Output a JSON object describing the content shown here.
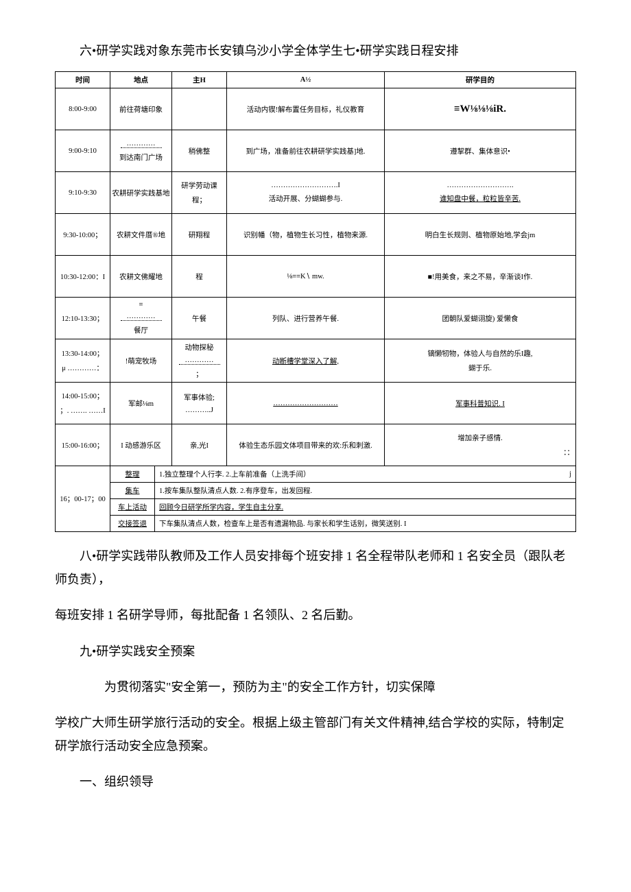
{
  "heading_six_seven": "六•研学实践对象东莞市长安镇乌沙小学全体学生七•研学实践日程安排",
  "table": {
    "headers": {
      "time": "时间",
      "location": "地点",
      "subject": "主H",
      "activity": "A½",
      "goal": "研学目的"
    },
    "rows": [
      {
        "time": "8:00-9:00",
        "location": "前往荷塘印象",
        "subject": "",
        "activity": "活动内锲!解布置任务目标，礼仪教育",
        "goal": "≡W⅛⅛⅛iR."
      },
      {
        "time": "9:00-9:10",
        "location_top": "…………",
        "location": "到达南门广场",
        "subject": "稍佛整",
        "activity": "到广场，准备前往农耕研学实践基]地.",
        "goal": "遵挈群、集体意识•"
      },
      {
        "time": "9:10-9:30",
        "location": "农耕研学实践基地",
        "subject_top": "研学劳动课",
        "subject_bot": "程；",
        "activity_top": "……………………….I",
        "activity_bot": "活动开展、分蝴蝴参与.",
        "goal_top": "……………………….",
        "goal_bot": "谁知盘中餐，粒粒皆辛苦."
      },
      {
        "time": "9:30-10:00；",
        "location": "农耕文件厝®地",
        "subject": "研翔程",
        "activity": "识别幡（物，植物生长习性，植物来源.",
        "goal": "明白生长规则、植物原始地,学会jm"
      },
      {
        "time": "10:30-12:00：I",
        "location": "农耕文佛耀地",
        "subject": "程",
        "activity": "⅛≡≡K∖          mw.",
        "goal": "■!用美食，来之不易，辛渐谈I作."
      },
      {
        "time": "12:10-13:30；",
        "location_top": "≡",
        "location_mid": "…………",
        "location_bot": "餐厅",
        "subject": "午餐",
        "activity": "列队、进行营养午餐.",
        "goal": "团朝队爱蝴诩旋) 爱懒食"
      },
      {
        "time": "13:30-14:00；",
        "time_extra": "μ …………：",
        "location": "!萌宠牧场",
        "subject_top": "动物探秘",
        "subject_mid": "…………",
        "subject_bot": "；",
        "activity": "动断槽学堂深入了解,",
        "goal_top": "镝懒牣物，体验人与自然的乐I趣,",
        "goal_bot": "蝴于乐."
      },
      {
        "time": "14:00-15:00；",
        "time_extra": "；. ……. ……I",
        "location": "军邮⅛m",
        "subject_top": "军事体验;",
        "subject_bot": "………..J",
        "activity": "………………………",
        "goal": "军事科普知识.     I"
      },
      {
        "time": "15:00-16:00；",
        "location": "I 动感游乐区",
        "subject": "亲,光I",
        "activity": "体验生态乐园文体项目带来的欢:乐和刺激.",
        "goal_top": "增加亲子感情.",
        "goal_bot": "：："
      }
    ],
    "final": {
      "time": "16；00-17；00",
      "sub": [
        {
          "label": "整理",
          "body": "1.独立整理个人行李. 2.上车前准备（上洗手间）",
          "tail": "j"
        },
        {
          "label": "集车",
          "body": "1.按车集队整队清点人数. 2.有序登车，出发回程.",
          "tail": ""
        },
        {
          "label": "车上活动",
          "body": "回顾今日研学所学内容，学生自主分享.",
          "tail": ""
        },
        {
          "label": "交接签退",
          "body": "下车集队清点人数，检查车上是否有遗漏物品.     与家长和学生话别，微笑送别. I",
          "tail": ""
        }
      ]
    }
  },
  "para_eight": "八•研学实践带队教师及工作人员安排每个班安排 1 名全程带队老师和 1 名安全员（跟队老师负责），",
  "para_eight_b": "每班安排 1 名研学导师，每批配备 1 名领队、2 名后勤。",
  "para_nine_head": "九•研学实践安全预案",
  "para_nine_a": "为贯彻落实\"安全第一，预防为主\"的安全工作方针，切实保障",
  "para_nine_b": "学校广大师生研学旅行活动的安全。根据上级主管部门有关文件精神,结合学校的实际，特制定研学旅行活动安全应急预案。",
  "para_org": "一、组织领导"
}
